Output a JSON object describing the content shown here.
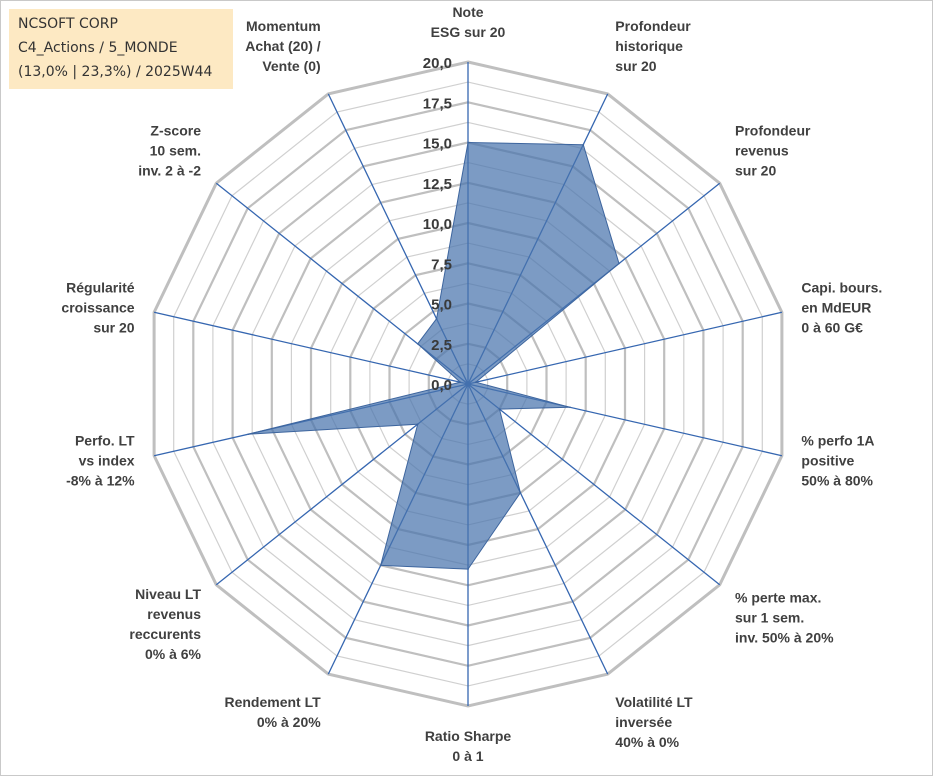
{
  "info_box": {
    "line1": "NCSOFT CORP",
    "line2": "C4_Actions / 5_MONDE",
    "line3": "(13,0% | 23,3%) / 2025W44"
  },
  "chart_data": {
    "type": "radar",
    "rmax": 20,
    "grid": true,
    "tick_labels": [
      "0,0",
      "2,5",
      "5,0",
      "7,5",
      "10,0",
      "12,5",
      "15,0",
      "17,5",
      "20,0"
    ],
    "axes": [
      [
        "Note",
        "ESG sur 20"
      ],
      [
        "Profondeur",
        "historique",
        "sur 20"
      ],
      [
        "Profondeur",
        "revenus",
        "sur 20"
      ],
      [
        "Capi. bours.",
        "en MdEUR",
        "0 à 60 G€"
      ],
      [
        "% perfo 1A",
        "positive",
        "50% à 80%"
      ],
      [
        "% perte max.",
        "sur 1 sem.",
        "inv. 50% à 20%"
      ],
      [
        "Volatilité LT",
        "inversée",
        "40% à 0%"
      ],
      [
        "Ratio Sharpe",
        "0 à 1"
      ],
      [
        "Rendement LT",
        "0% à 20%"
      ],
      [
        "Niveau LT",
        "revenus",
        "reccurents",
        "0% à 6%"
      ],
      [
        "Perfo. LT",
        "vs index",
        "-8% à 12%"
      ],
      [
        "Régularité",
        "croissance",
        "sur 20"
      ],
      [
        "Z-score",
        "10 sem.",
        "inv. 2 à -2"
      ],
      [
        "Momentum",
        "Achat (20) /",
        "Vente (0)"
      ]
    ],
    "series": [
      {
        "values": [
          15.0,
          16.5,
          12.0,
          0.5,
          6.5,
          2.5,
          7.5,
          11.5,
          12.5,
          4.0,
          14.0,
          0.5,
          4.0,
          4.5
        ]
      }
    ],
    "colors": {
      "fill": "#4a74ad",
      "fill_opacity": 0.72,
      "spoke": "#3566b0",
      "grid": "#bfbfbf",
      "grid_inner": "#d0d0d0"
    }
  }
}
